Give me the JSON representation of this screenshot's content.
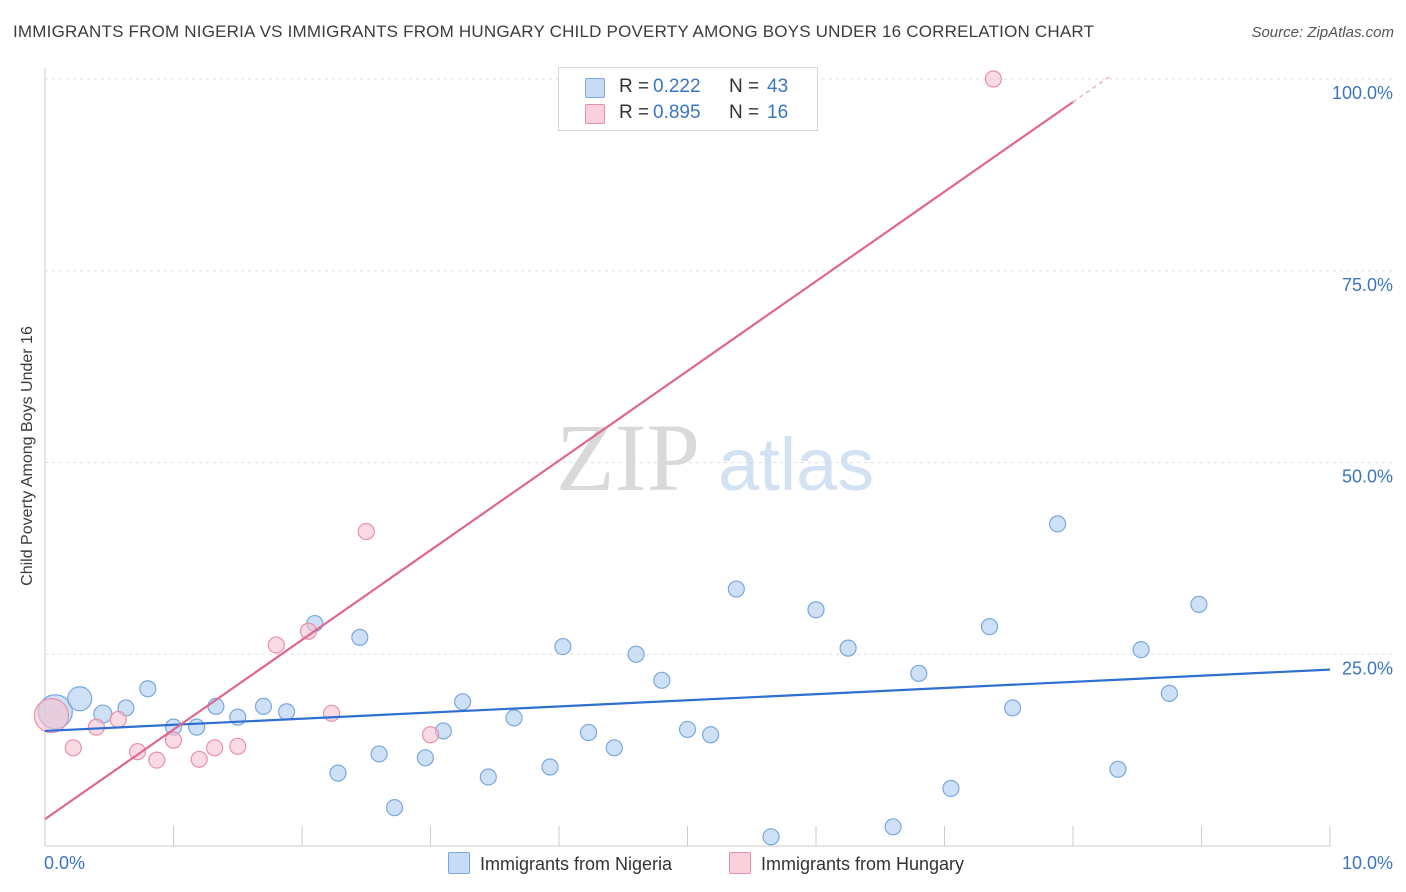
{
  "title": "IMMIGRANTS FROM NIGERIA VS IMMIGRANTS FROM HUNGARY CHILD POVERTY AMONG BOYS UNDER 16 CORRELATION CHART",
  "source": "Source: ZipAtlas.com",
  "watermark": {
    "zip": "ZIP",
    "atlas": "atlas"
  },
  "colors": {
    "nigeria_fill": "#aecbf0",
    "nigeria_stroke": "#7aa8de",
    "nigeria_line": "#2f6fd1",
    "hungary_fill": "#f7c1d0",
    "hungary_stroke": "#e891ab",
    "hungary_line": "#e0668f",
    "tick_text": "#3a75c4",
    "grid": "#dedede"
  },
  "legend": {
    "rows": [
      {
        "r_label": "R =",
        "r_value": "0.222",
        "n_label": "N =",
        "n_value": "43"
      },
      {
        "r_label": "R =",
        "r_value": "0.895",
        "n_label": "N =",
        "n_value": "16"
      }
    ]
  },
  "chart_data": {
    "type": "scatter",
    "title": "IMMIGRANTS FROM NIGERIA VS IMMIGRANTS FROM HUNGARY CHILD POVERTY AMONG BOYS UNDER 16 CORRELATION CHART",
    "xlabel": "",
    "ylabel": "Child Poverty Among Boys Under 16",
    "xlim": [
      0,
      10
    ],
    "ylim": [
      0,
      100
    ],
    "x_tick_labels": [
      "0.0%",
      "10.0%"
    ],
    "y_tick_labels": [
      "25.0%",
      "50.0%",
      "75.0%",
      "100.0%"
    ],
    "y_ticks": [
      25,
      50,
      75,
      100
    ],
    "series": [
      {
        "name": "Immigrants from Nigeria",
        "R": 0.222,
        "N": 43,
        "trend": {
          "x": [
            0,
            10
          ],
          "y": [
            15.0,
            23.0
          ]
        },
        "points": [
          {
            "x": 0.08,
            "y": 17.5,
            "s": "xl"
          },
          {
            "x": 0.27,
            "y": 19.2,
            "s": "l"
          },
          {
            "x": 0.45,
            "y": 17.2,
            "s": "m"
          },
          {
            "x": 0.63,
            "y": 18.0
          },
          {
            "x": 0.8,
            "y": 20.5
          },
          {
            "x": 1.0,
            "y": 15.5
          },
          {
            "x": 1.18,
            "y": 15.5
          },
          {
            "x": 1.33,
            "y": 18.2
          },
          {
            "x": 1.5,
            "y": 16.8
          },
          {
            "x": 1.7,
            "y": 18.2
          },
          {
            "x": 1.88,
            "y": 17.5
          },
          {
            "x": 2.1,
            "y": 29.0
          },
          {
            "x": 2.28,
            "y": 9.5
          },
          {
            "x": 2.45,
            "y": 27.2
          },
          {
            "x": 2.6,
            "y": 12.0
          },
          {
            "x": 2.72,
            "y": 5.0
          },
          {
            "x": 2.96,
            "y": 11.5
          },
          {
            "x": 3.1,
            "y": 15.0
          },
          {
            "x": 3.25,
            "y": 18.8
          },
          {
            "x": 3.45,
            "y": 9.0
          },
          {
            "x": 3.65,
            "y": 16.7
          },
          {
            "x": 3.93,
            "y": 10.3
          },
          {
            "x": 4.03,
            "y": 26.0
          },
          {
            "x": 4.23,
            "y": 14.8
          },
          {
            "x": 4.43,
            "y": 12.8
          },
          {
            "x": 4.6,
            "y": 25.0
          },
          {
            "x": 4.8,
            "y": 21.6
          },
          {
            "x": 5.0,
            "y": 15.2
          },
          {
            "x": 5.18,
            "y": 14.5
          },
          {
            "x": 5.38,
            "y": 33.5
          },
          {
            "x": 5.65,
            "y": 1.2
          },
          {
            "x": 6.0,
            "y": 30.8
          },
          {
            "x": 6.25,
            "y": 25.8
          },
          {
            "x": 6.6,
            "y": 2.5
          },
          {
            "x": 6.8,
            "y": 22.5
          },
          {
            "x": 7.05,
            "y": 7.5
          },
          {
            "x": 7.35,
            "y": 28.6
          },
          {
            "x": 7.53,
            "y": 18.0
          },
          {
            "x": 7.88,
            "y": 42.0
          },
          {
            "x": 8.35,
            "y": 10.0
          },
          {
            "x": 8.53,
            "y": 25.6
          },
          {
            "x": 8.75,
            "y": 19.9
          },
          {
            "x": 8.98,
            "y": 31.5
          }
        ]
      },
      {
        "name": "Immigrants from Hungary",
        "R": 0.895,
        "N": 16,
        "trend": {
          "x": [
            0,
            8.0
          ],
          "y": [
            3.5,
            97.0
          ]
        },
        "trend_dashed_extension": {
          "x": [
            8.0,
            8.3
          ],
          "y": [
            97.0,
            100.5
          ]
        },
        "points": [
          {
            "x": 0.05,
            "y": 17.0,
            "s": "xl"
          },
          {
            "x": 0.22,
            "y": 12.8
          },
          {
            "x": 0.4,
            "y": 15.5
          },
          {
            "x": 0.57,
            "y": 16.5
          },
          {
            "x": 0.72,
            "y": 12.3
          },
          {
            "x": 0.87,
            "y": 11.2
          },
          {
            "x": 1.0,
            "y": 13.8
          },
          {
            "x": 1.2,
            "y": 11.3
          },
          {
            "x": 1.32,
            "y": 12.8
          },
          {
            "x": 1.5,
            "y": 13.0
          },
          {
            "x": 1.8,
            "y": 26.2
          },
          {
            "x": 2.05,
            "y": 28.0
          },
          {
            "x": 2.23,
            "y": 17.3
          },
          {
            "x": 2.5,
            "y": 41.0
          },
          {
            "x": 3.0,
            "y": 14.5
          },
          {
            "x": 7.38,
            "y": 100.0
          }
        ]
      }
    ]
  }
}
